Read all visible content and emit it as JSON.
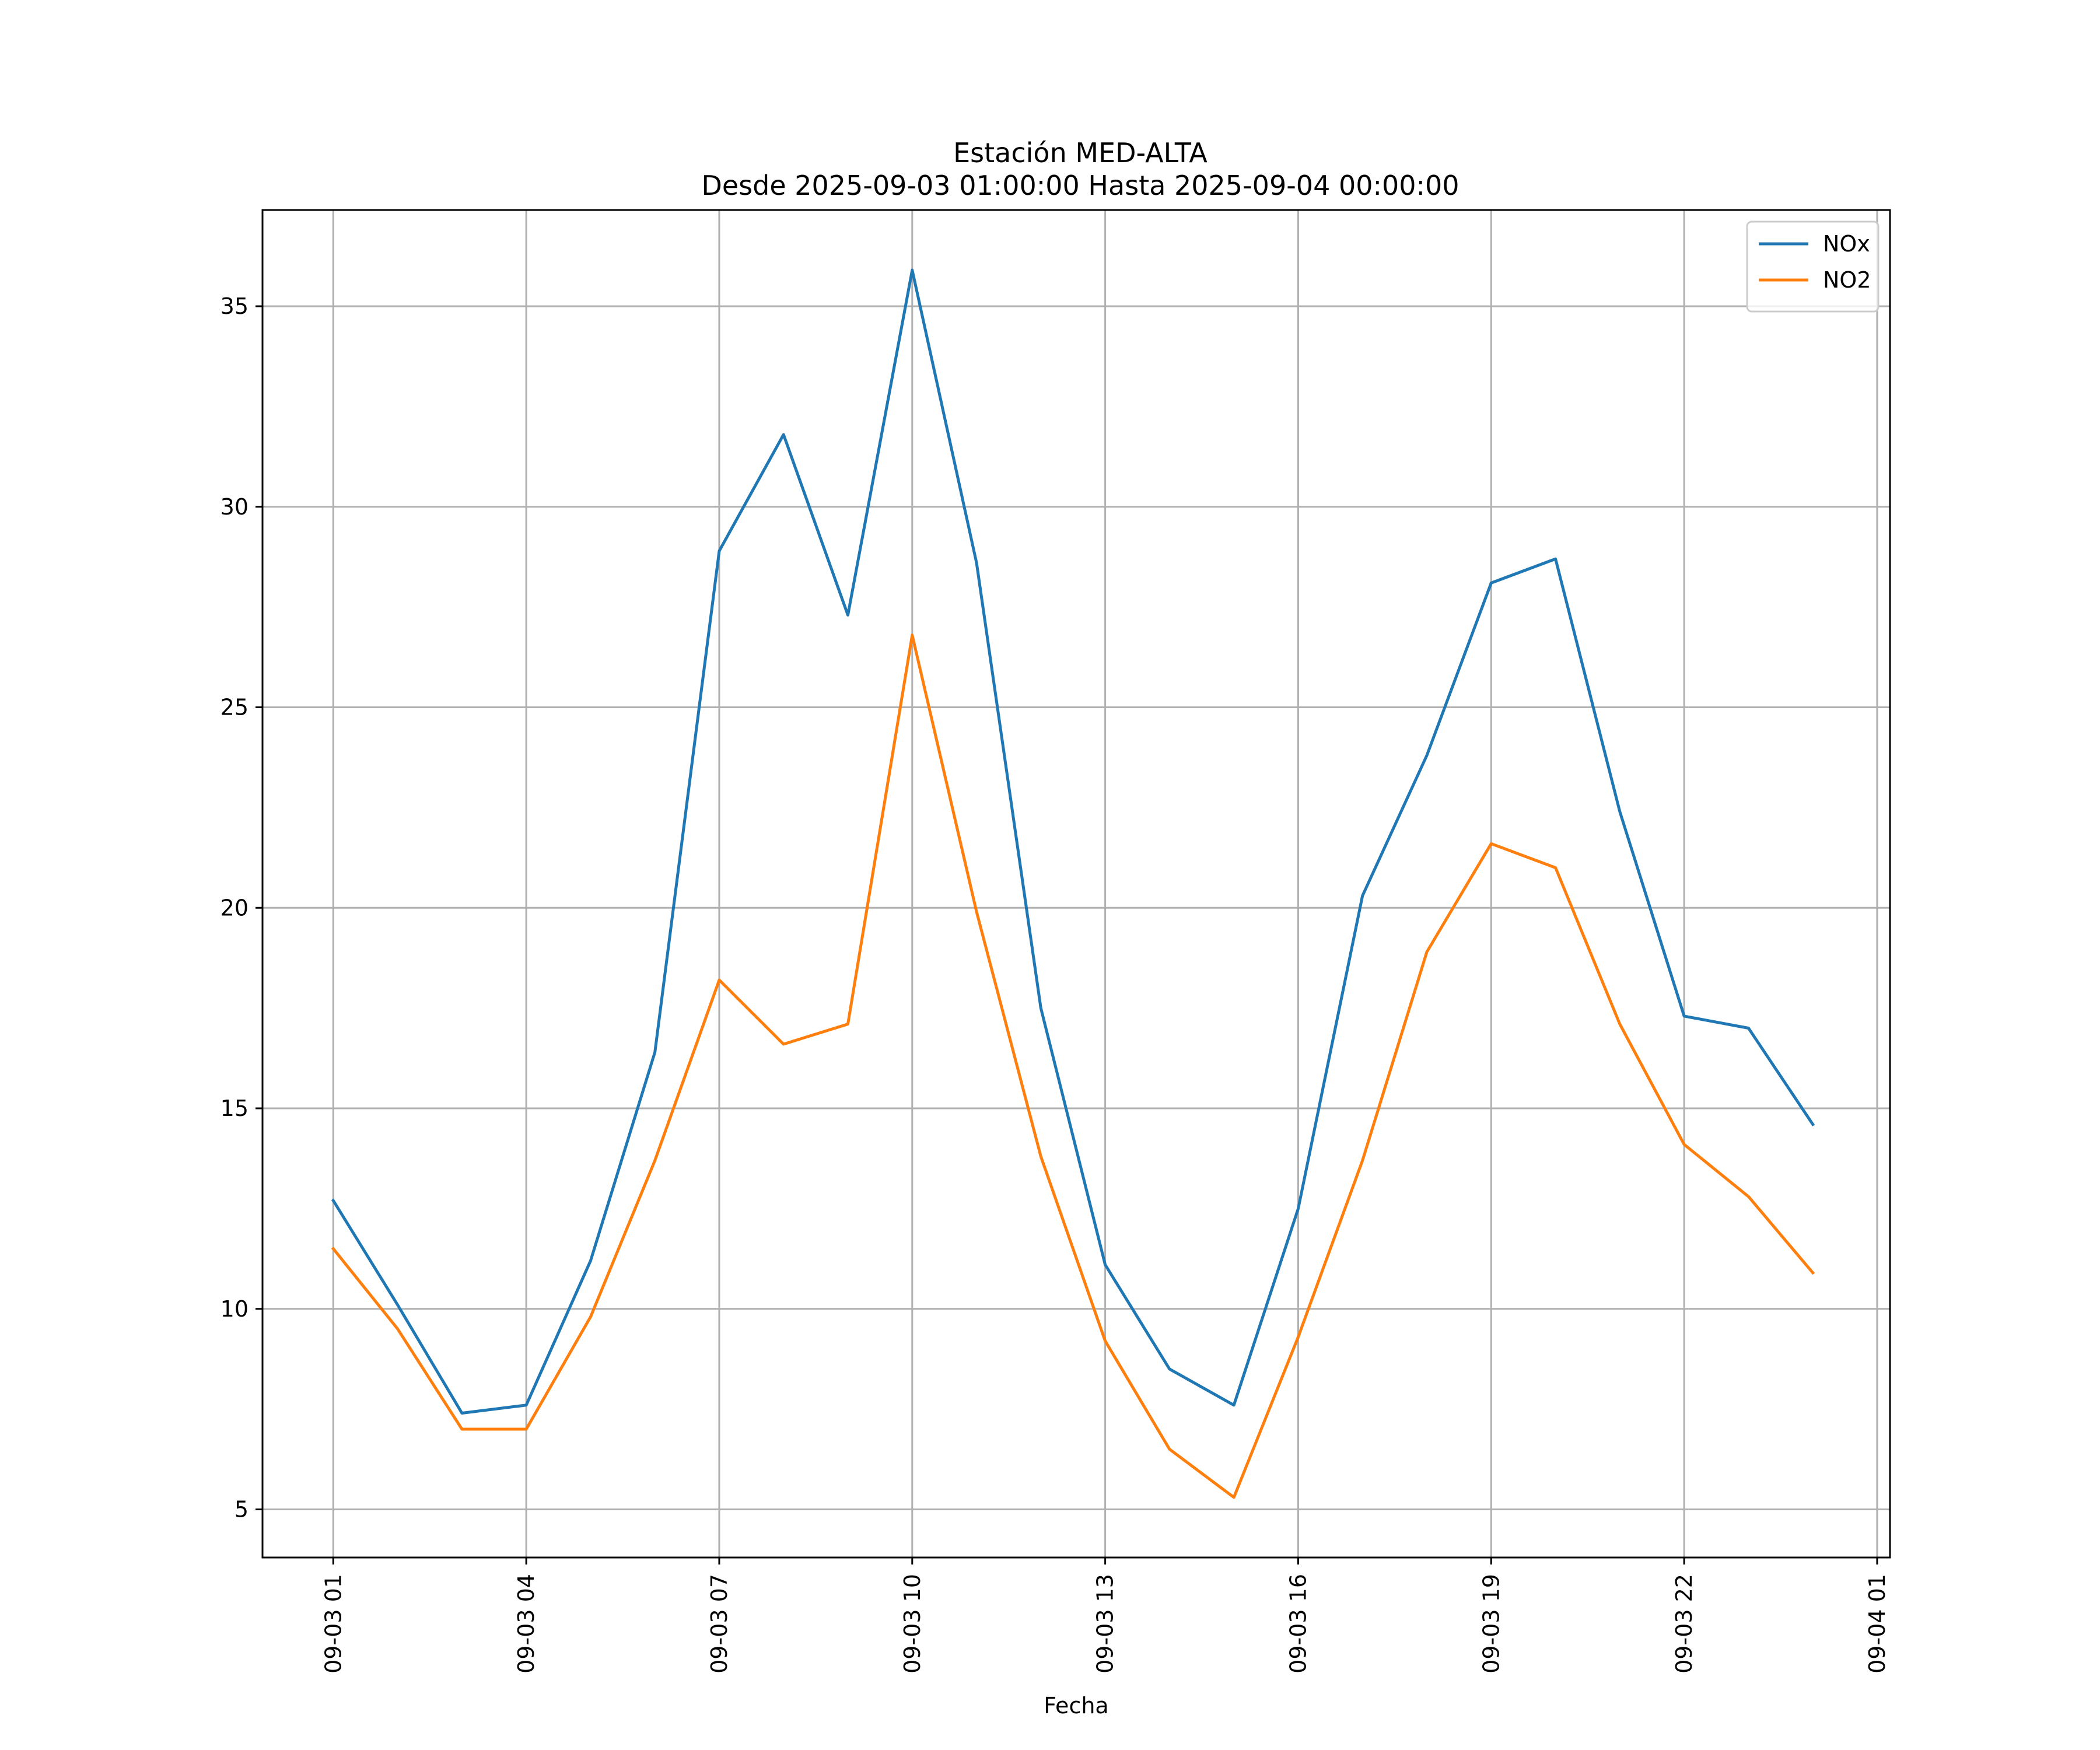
{
  "chart_data": {
    "type": "line",
    "title": "Estación MED-ALTA",
    "subtitle": "Desde 2025-09-03 01:00:00 Hasta 2025-09-04 00:00:00",
    "xlabel": "Fecha",
    "ylabel": "",
    "x": [
      "01:00",
      "02:00",
      "03:00",
      "04:00",
      "05:00",
      "06:00",
      "07:00",
      "08:00",
      "09:00",
      "10:00",
      "11:00",
      "12:00",
      "13:00",
      "14:00",
      "15:00",
      "16:00",
      "17:00",
      "18:00",
      "19:00",
      "20:00",
      "21:00",
      "22:00",
      "23:00",
      "24:00"
    ],
    "x_hours": [
      1,
      2,
      3,
      4,
      5,
      6,
      7,
      8,
      9,
      10,
      11,
      12,
      13,
      14,
      15,
      16,
      17,
      18,
      19,
      20,
      21,
      22,
      23,
      24
    ],
    "xlim": [
      -0.1,
      25.2
    ],
    "xticks": [
      1,
      4,
      7,
      10,
      13,
      16,
      19,
      22,
      25
    ],
    "xtick_labels": [
      "09-03 01",
      "09-03 04",
      "09-03 07",
      "09-03 10",
      "09-03 13",
      "09-03 16",
      "09-03 19",
      "09-03 22",
      "09-04 01"
    ],
    "ylim": [
      3.8,
      37.4
    ],
    "yticks": [
      5,
      10,
      15,
      20,
      25,
      30,
      35
    ],
    "ytick_labels": [
      "5",
      "10",
      "15",
      "20",
      "25",
      "30",
      "35"
    ],
    "grid": true,
    "legend_position": "top-right",
    "series": [
      {
        "name": "NOx",
        "color": "#1f77b4",
        "values": [
          12.7,
          10.1,
          7.4,
          7.6,
          11.2,
          16.4,
          28.9,
          31.8,
          27.3,
          35.9,
          28.6,
          17.5,
          11.1,
          8.5,
          7.6,
          12.5,
          20.3,
          23.8,
          28.1,
          28.7,
          22.4,
          17.3,
          17.0,
          14.6
        ]
      },
      {
        "name": "NO2",
        "color": "#ff7f0e",
        "values": [
          11.5,
          9.5,
          7.0,
          7.0,
          9.8,
          13.7,
          18.2,
          16.6,
          17.1,
          26.8,
          19.9,
          13.8,
          9.2,
          6.5,
          5.3,
          9.3,
          13.7,
          18.9,
          21.6,
          21.0,
          17.1,
          14.1,
          12.8,
          10.9
        ]
      }
    ]
  }
}
